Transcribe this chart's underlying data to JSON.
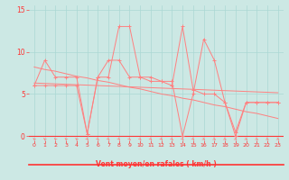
{
  "x": [
    0,
    1,
    2,
    3,
    4,
    5,
    6,
    7,
    8,
    9,
    10,
    11,
    12,
    13,
    14,
    15,
    16,
    17,
    18,
    19,
    20,
    21,
    22,
    23
  ],
  "series": {
    "s1": [
      6,
      6,
      6,
      6,
      6,
      0.3,
      7,
      7,
      13,
      13,
      7,
      7,
      6.5,
      6.5,
      0,
      5,
      11.5,
      9,
      4,
      0,
      4,
      4,
      4,
      4
    ],
    "s2": [
      6,
      9,
      7,
      7,
      7,
      0.3,
      7,
      9,
      9,
      7,
      7,
      6.5,
      6.5,
      6,
      13,
      5.5,
      5,
      5,
      4,
      0.5,
      4,
      4,
      4,
      4
    ],
    "reg1": [
      8.2,
      7.9,
      7.7,
      7.4,
      7.1,
      6.9,
      6.6,
      6.4,
      6.1,
      5.8,
      5.6,
      5.3,
      5.0,
      4.8,
      4.5,
      4.3,
      4.0,
      3.7,
      3.5,
      3.2,
      2.9,
      2.7,
      2.4,
      2.1
    ],
    "reg2": [
      6.3,
      6.25,
      6.2,
      6.15,
      6.1,
      6.05,
      6.0,
      5.95,
      5.9,
      5.85,
      5.8,
      5.75,
      5.7,
      5.65,
      5.6,
      5.55,
      5.5,
      5.45,
      5.4,
      5.35,
      5.3,
      5.25,
      5.2,
      5.15
    ]
  },
  "wind_directions": [
    225,
    225,
    225,
    225,
    225,
    45,
    45,
    45,
    45,
    45,
    45,
    45,
    45,
    45,
    45,
    45,
    60,
    60,
    60,
    60,
    60,
    60,
    60,
    60
  ],
  "bg_color": "#cce8e4",
  "line_color": "#ff8080",
  "grid_color": "#aad8d4",
  "axis_color": "#ff3333",
  "xlabel": "Vent moyen/en rafales ( km/h )",
  "ylim": [
    -0.5,
    15.5
  ],
  "xlim": [
    -0.5,
    23.5
  ],
  "yticks": [
    0,
    5,
    10,
    15
  ],
  "xticks": [
    0,
    1,
    2,
    3,
    4,
    5,
    6,
    7,
    8,
    9,
    10,
    11,
    12,
    13,
    14,
    15,
    16,
    17,
    18,
    19,
    20,
    21,
    22,
    23
  ]
}
